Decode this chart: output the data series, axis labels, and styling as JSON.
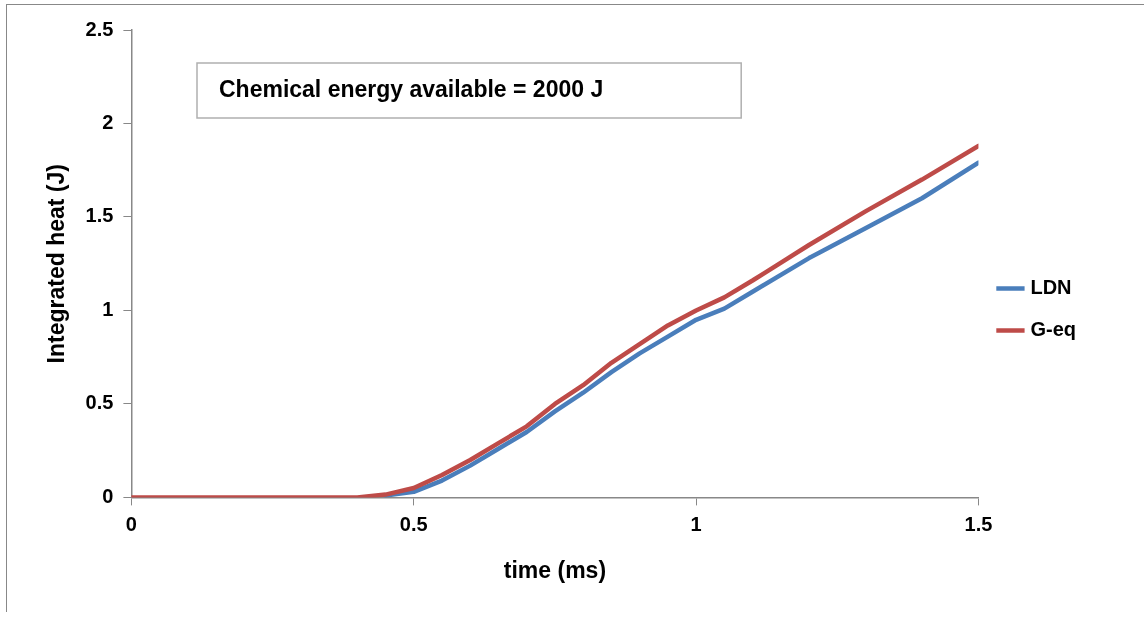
{
  "chart_data": {
    "type": "line",
    "xlabel": "time (ms)",
    "ylabel": "Integrated heat (J)",
    "annotations": [
      "Chemical energy available = 2000 J"
    ],
    "xlim": [
      0,
      1.5
    ],
    "xticks": [
      0,
      0.5,
      1,
      1.5
    ],
    "ylim": [
      0,
      2.5
    ],
    "yticks": [
      0,
      0.5,
      1,
      1.5,
      2,
      2.5
    ],
    "grid": false,
    "legend": "right",
    "marker": "none",
    "line_style": "solid",
    "series": [
      {
        "name": "LDN",
        "color": "#4a7ebb",
        "x": [
          0.45,
          0.5,
          0.55,
          0.6,
          0.65,
          0.7,
          0.75,
          0.8,
          0.85,
          0.9,
          0.95,
          1.0,
          1.05,
          1.1,
          1.2,
          1.3,
          1.4,
          1.5
        ],
        "values": [
          0.01,
          0.03,
          0.09,
          0.17,
          0.26,
          0.35,
          0.46,
          0.56,
          0.67,
          0.77,
          0.86,
          0.95,
          1.01,
          1.1,
          1.28,
          1.44,
          1.6,
          1.79
        ]
      },
      {
        "name": "G-eq",
        "color": "#be4b48",
        "x": [
          0,
          0.1,
          0.2,
          0.3,
          0.4,
          0.45,
          0.5,
          0.55,
          0.6,
          0.65,
          0.7,
          0.75,
          0.8,
          0.85,
          0.9,
          0.95,
          1.0,
          1.05,
          1.1,
          1.2,
          1.3,
          1.4,
          1.5
        ],
        "values": [
          0,
          0,
          0,
          0,
          0,
          0.015,
          0.05,
          0.12,
          0.2,
          0.29,
          0.38,
          0.5,
          0.6,
          0.72,
          0.82,
          0.92,
          1.0,
          1.07,
          1.16,
          1.35,
          1.53,
          1.7,
          1.88
        ]
      }
    ]
  }
}
